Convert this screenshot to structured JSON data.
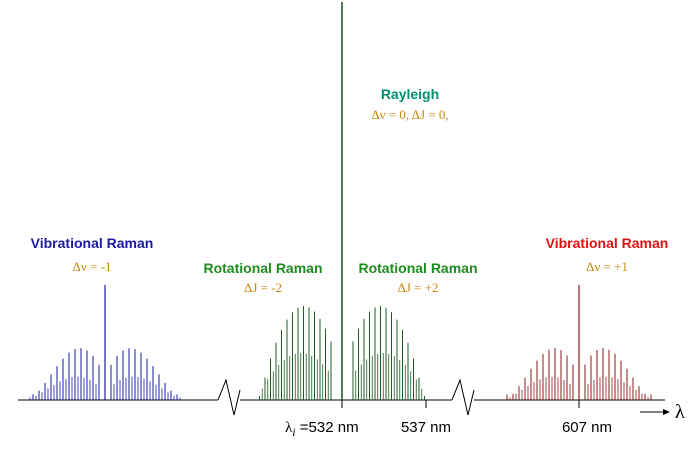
{
  "colors": {
    "rayleigh": "#009070",
    "blue": "#1a1aa6",
    "green": "#1e8c1e",
    "red": "#e01010",
    "orange": "#c8860a",
    "darkgreen": "#1b5e20",
    "darkred": "#8b1a1a",
    "axis": "#000000"
  },
  "labels": {
    "rayleigh_title": "Rayleigh",
    "rayleigh_sub": "Δν = 0,  ΔJ = 0,",
    "vib_left_title": "Vibrational Raman",
    "vib_left_sub": "Δν = -1",
    "rot_left_title": "Rotational Raman",
    "rot_left_sub": "ΔJ = -2",
    "rot_right_title": "Rotational Raman",
    "rot_right_sub": "ΔJ = +2",
    "vib_right_title": "Vibrational Raman",
    "vib_right_sub": "Δν = +1"
  },
  "axis": {
    "lambda_symbol": "λ",
    "lambda_sub": "i",
    "tick_532": " =532 nm",
    "tick_537": "537 nm",
    "tick_607": "607 nm",
    "arrow_label": "λ"
  }
}
